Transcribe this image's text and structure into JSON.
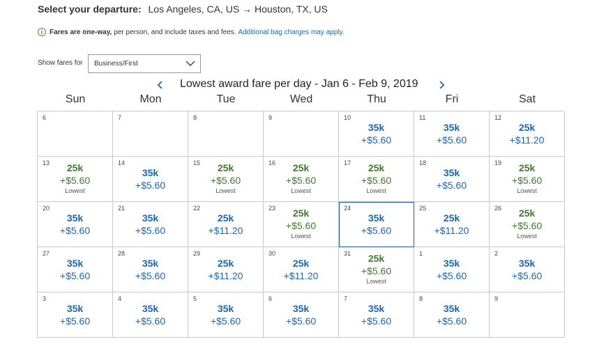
{
  "departure": {
    "label": "Select your departure:",
    "route": "Los Angeles, CA, US → Houston, TX, US"
  },
  "note": {
    "bold": "Fares are one-way,",
    "text": "per person, and include taxes and fees.",
    "link": "Additional bag charges may apply."
  },
  "fare_filter": {
    "label": "Show fares for",
    "selected": "Business/First"
  },
  "calendar": {
    "title": "Lowest award fare per day - Jan 6 - Feb 9, 2019",
    "weekdays": [
      "Sun",
      "Mon",
      "Tue",
      "Wed",
      "Thu",
      "Fri",
      "Sat"
    ],
    "selected_day": "24",
    "weeks": [
      [
        {
          "day": "6"
        },
        {
          "day": "7"
        },
        {
          "day": "8"
        },
        {
          "day": "9"
        },
        {
          "day": "10",
          "miles": "35k",
          "tax": "+$5.60"
        },
        {
          "day": "11",
          "miles": "35k",
          "tax": "+$5.60"
        },
        {
          "day": "12",
          "miles": "25k",
          "tax": "+$11.20"
        }
      ],
      [
        {
          "day": "13",
          "miles": "25k",
          "tax": "+$5.60",
          "tag": "Lowest"
        },
        {
          "day": "14",
          "miles": "35k",
          "tax": "+$5.60"
        },
        {
          "day": "15",
          "miles": "25k",
          "tax": "+$5.60",
          "tag": "Lowest"
        },
        {
          "day": "16",
          "miles": "25k",
          "tax": "+$5.60",
          "tag": "Lowest"
        },
        {
          "day": "17",
          "miles": "25k",
          "tax": "+$5.60",
          "tag": "Lowest"
        },
        {
          "day": "18",
          "miles": "35k",
          "tax": "+$5.60"
        },
        {
          "day": "19",
          "miles": "25k",
          "tax": "+$5.60",
          "tag": "Lowest"
        }
      ],
      [
        {
          "day": "20",
          "miles": "35k",
          "tax": "+$5.60"
        },
        {
          "day": "21",
          "miles": "35k",
          "tax": "+$5.60"
        },
        {
          "day": "22",
          "miles": "25k",
          "tax": "+$11.20"
        },
        {
          "day": "23",
          "miles": "25k",
          "tax": "+$5.60",
          "tag": "Lowest"
        },
        {
          "day": "24",
          "miles": "35k",
          "tax": "+$5.60"
        },
        {
          "day": "25",
          "miles": "25k",
          "tax": "+$11.20"
        },
        {
          "day": "26",
          "miles": "25k",
          "tax": "+$5.60",
          "tag": "Lowest"
        }
      ],
      [
        {
          "day": "27",
          "miles": "35k",
          "tax": "+$5.60"
        },
        {
          "day": "28",
          "miles": "35k",
          "tax": "+$5.60"
        },
        {
          "day": "29",
          "miles": "25k",
          "tax": "+$11.20"
        },
        {
          "day": "30",
          "miles": "25k",
          "tax": "+$11.20"
        },
        {
          "day": "31",
          "miles": "25k",
          "tax": "+$5.60",
          "tag": "Lowest"
        },
        {
          "day": "1",
          "miles": "35k",
          "tax": "+$5.60"
        },
        {
          "day": "2",
          "miles": "35k",
          "tax": "+$5.60"
        }
      ],
      [
        {
          "day": "3",
          "miles": "35k",
          "tax": "+$5.60"
        },
        {
          "day": "4",
          "miles": "35k",
          "tax": "+$5.60"
        },
        {
          "day": "5",
          "miles": "35k",
          "tax": "+$5.60"
        },
        {
          "day": "6",
          "miles": "35k",
          "tax": "+$5.60"
        },
        {
          "day": "7",
          "miles": "35k",
          "tax": "+$5.60"
        },
        {
          "day": "8",
          "miles": "35k",
          "tax": "+$5.60"
        },
        {
          "day": "9"
        }
      ]
    ]
  },
  "colors": {
    "fare_blue": "#1a66b3",
    "fare_green": "#3f7a2a",
    "selected_border": "#1a5aa6",
    "info_green": "#4a8f3b"
  },
  "icons": {
    "info": "info-icon",
    "dropdown": "chevron-down-icon",
    "prev": "chevron-left-icon",
    "next": "chevron-right-icon"
  }
}
